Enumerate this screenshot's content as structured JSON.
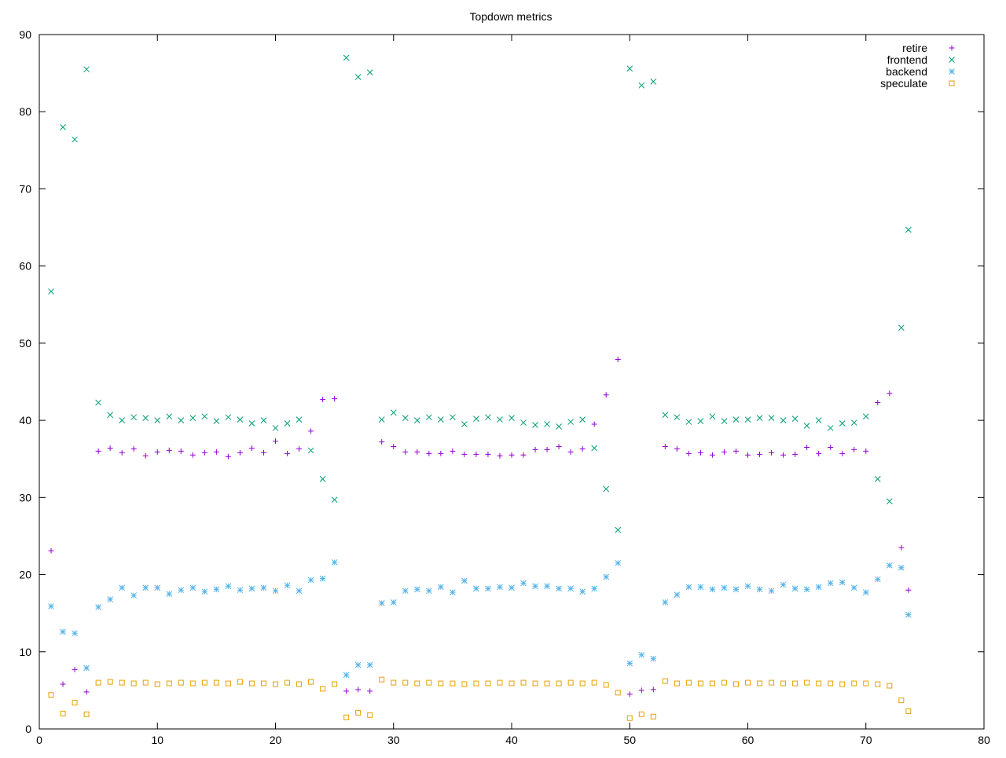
{
  "chart_data": {
    "type": "scatter",
    "title": "Topdown metrics",
    "xlabel": "",
    "ylabel": "",
    "xlim": [
      0,
      80
    ],
    "ylim": [
      0,
      90
    ],
    "xticks": [
      0,
      10,
      20,
      30,
      40,
      50,
      60,
      70,
      80
    ],
    "yticks": [
      0,
      10,
      20,
      30,
      40,
      50,
      60,
      70,
      80,
      90
    ],
    "grid": false,
    "legend_position": "top-right",
    "series": [
      {
        "name": "retire",
        "marker": "plus",
        "color": "#9400d3",
        "x": [
          1,
          2,
          3,
          4,
          5,
          6,
          7,
          8,
          9,
          10,
          11,
          12,
          13,
          14,
          15,
          16,
          17,
          18,
          19,
          20,
          21,
          22,
          23,
          24,
          25,
          26,
          27,
          28,
          29,
          30,
          31,
          32,
          33,
          34,
          35,
          36,
          37,
          38,
          39,
          40,
          41,
          42,
          43,
          44,
          45,
          46,
          47,
          48,
          49,
          50,
          51,
          52,
          53,
          54,
          55,
          56,
          57,
          58,
          59,
          60,
          61,
          62,
          63,
          64,
          65,
          66,
          67,
          68,
          69,
          70,
          71,
          72,
          73,
          73.6
        ],
        "y": [
          23.1,
          5.8,
          7.7,
          4.8,
          36.0,
          36.4,
          35.8,
          36.3,
          35.4,
          35.9,
          36.1,
          36.0,
          35.5,
          35.8,
          35.9,
          35.3,
          35.8,
          36.4,
          35.8,
          37.3,
          35.7,
          36.3,
          38.6,
          42.7,
          42.8,
          4.9,
          5.1,
          4.9,
          37.2,
          36.6,
          35.9,
          35.9,
          35.7,
          35.7,
          36.0,
          35.6,
          35.6,
          35.6,
          35.4,
          35.5,
          35.5,
          36.2,
          36.2,
          36.6,
          35.9,
          36.3,
          39.5,
          43.3,
          47.9,
          4.5,
          5.0,
          5.1,
          36.6,
          36.3,
          35.7,
          35.8,
          35.5,
          35.9,
          36.0,
          35.5,
          35.6,
          35.8,
          35.5,
          35.6,
          36.5,
          35.7,
          36.5,
          35.7,
          36.2,
          36.0,
          42.3,
          43.5,
          23.5,
          18.0
        ]
      },
      {
        "name": "frontend",
        "marker": "cross",
        "color": "#009e73",
        "x": [
          1,
          2,
          3,
          4,
          5,
          6,
          7,
          8,
          9,
          10,
          11,
          12,
          13,
          14,
          15,
          16,
          17,
          18,
          19,
          20,
          21,
          22,
          23,
          24,
          25,
          26,
          27,
          28,
          29,
          30,
          31,
          32,
          33,
          34,
          35,
          36,
          37,
          38,
          39,
          40,
          41,
          42,
          43,
          44,
          45,
          46,
          47,
          48,
          49,
          50,
          51,
          52,
          53,
          54,
          55,
          56,
          57,
          58,
          59,
          60,
          61,
          62,
          63,
          64,
          65,
          66,
          67,
          68,
          69,
          70,
          71,
          72,
          73,
          73.6
        ],
        "y": [
          56.7,
          78.0,
          76.4,
          85.5,
          42.3,
          40.7,
          40.0,
          40.4,
          40.3,
          40.0,
          40.5,
          40.0,
          40.3,
          40.5,
          39.9,
          40.4,
          40.1,
          39.6,
          40.0,
          39.0,
          39.6,
          40.1,
          36.1,
          32.4,
          29.7,
          87.0,
          84.5,
          85.1,
          40.1,
          41.0,
          40.3,
          40.0,
          40.4,
          40.1,
          40.4,
          39.5,
          40.2,
          40.4,
          40.1,
          40.3,
          39.7,
          39.4,
          39.5,
          39.2,
          39.8,
          40.1,
          36.4,
          31.1,
          25.8,
          85.6,
          83.4,
          83.9,
          40.7,
          40.4,
          39.8,
          39.9,
          40.5,
          39.9,
          40.1,
          40.1,
          40.3,
          40.3,
          40.0,
          40.2,
          39.3,
          40.0,
          39.0,
          39.6,
          39.7,
          40.5,
          32.4,
          29.5,
          52.0,
          64.7
        ]
      },
      {
        "name": "backend",
        "marker": "star",
        "color": "#56b4e9",
        "x": [
          1,
          2,
          3,
          4,
          5,
          6,
          7,
          8,
          9,
          10,
          11,
          12,
          13,
          14,
          15,
          16,
          17,
          18,
          19,
          20,
          21,
          22,
          23,
          24,
          25,
          26,
          27,
          28,
          29,
          30,
          31,
          32,
          33,
          34,
          35,
          36,
          37,
          38,
          39,
          40,
          41,
          42,
          43,
          44,
          45,
          46,
          47,
          48,
          49,
          50,
          51,
          52,
          53,
          54,
          55,
          56,
          57,
          58,
          59,
          60,
          61,
          62,
          63,
          64,
          65,
          66,
          67,
          68,
          69,
          70,
          71,
          72,
          73,
          73.6
        ],
        "y": [
          15.9,
          12.6,
          12.4,
          7.9,
          15.8,
          16.8,
          18.3,
          17.3,
          18.3,
          18.3,
          17.5,
          18.0,
          18.3,
          17.8,
          18.1,
          18.5,
          18.0,
          18.2,
          18.3,
          17.9,
          18.6,
          17.9,
          19.3,
          19.5,
          21.6,
          7.0,
          8.3,
          8.3,
          16.3,
          16.4,
          17.9,
          18.1,
          17.9,
          18.4,
          17.7,
          19.2,
          18.2,
          18.2,
          18.4,
          18.3,
          18.9,
          18.5,
          18.5,
          18.2,
          18.2,
          17.8,
          18.2,
          19.7,
          21.5,
          8.5,
          9.6,
          9.1,
          16.4,
          17.4,
          18.4,
          18.4,
          18.1,
          18.3,
          18.1,
          18.5,
          18.1,
          17.9,
          18.7,
          18.2,
          18.1,
          18.4,
          18.9,
          19.0,
          18.3,
          17.7,
          19.4,
          21.2,
          20.9,
          14.8
        ]
      },
      {
        "name": "speculate",
        "marker": "open-square",
        "color": "#e69f00",
        "x": [
          1,
          2,
          3,
          4,
          5,
          6,
          7,
          8,
          9,
          10,
          11,
          12,
          13,
          14,
          15,
          16,
          17,
          18,
          19,
          20,
          21,
          22,
          23,
          24,
          25,
          26,
          27,
          28,
          29,
          30,
          31,
          32,
          33,
          34,
          35,
          36,
          37,
          38,
          39,
          40,
          41,
          42,
          43,
          44,
          45,
          46,
          47,
          48,
          49,
          50,
          51,
          52,
          53,
          54,
          55,
          56,
          57,
          58,
          59,
          60,
          61,
          62,
          63,
          64,
          65,
          66,
          67,
          68,
          69,
          70,
          71,
          72,
          73,
          73.6
        ],
        "y": [
          4.4,
          2.0,
          3.4,
          1.9,
          6.0,
          6.1,
          6.0,
          5.9,
          6.0,
          5.8,
          5.9,
          6.0,
          5.9,
          6.0,
          6.0,
          5.9,
          6.1,
          5.9,
          5.9,
          5.8,
          6.0,
          5.8,
          6.1,
          5.2,
          5.8,
          1.5,
          2.1,
          1.8,
          6.4,
          6.0,
          6.0,
          5.9,
          6.0,
          5.9,
          5.9,
          5.8,
          5.9,
          5.9,
          6.0,
          5.9,
          6.0,
          5.9,
          5.9,
          5.9,
          6.0,
          5.9,
          6.0,
          5.7,
          4.7,
          1.4,
          1.9,
          1.6,
          6.2,
          5.9,
          6.0,
          5.9,
          5.9,
          6.0,
          5.8,
          6.0,
          5.9,
          6.0,
          5.9,
          5.9,
          6.0,
          5.9,
          5.9,
          5.8,
          5.9,
          5.9,
          5.8,
          5.6,
          3.7,
          2.3
        ]
      }
    ]
  }
}
